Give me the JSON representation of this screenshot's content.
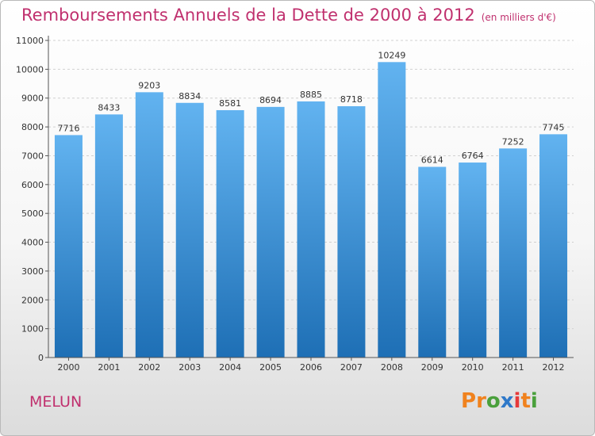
{
  "header": {
    "title": "Remboursements Annuels de la Dette de 2000 à 2012",
    "unit": "(en milliers d'€)"
  },
  "footer": {
    "city": "MELUN",
    "logo": [
      "P",
      "r",
      "o",
      "x",
      "i",
      "t",
      "i"
    ],
    "logo_colors": [
      "#f0821e",
      "#f0821e",
      "#4aa03c",
      "#2f79c9",
      "#e73a3a",
      "#f0821e",
      "#4aa03c"
    ]
  },
  "colors": {
    "bar_top": "#62b3f0",
    "bar_bottom": "#1e6fb5",
    "title": "#c0306e"
  },
  "chart_data": {
    "type": "bar",
    "title": "Remboursements Annuels de la Dette de 2000 à 2012",
    "categories": [
      "2000",
      "2001",
      "2002",
      "2003",
      "2004",
      "2005",
      "2006",
      "2007",
      "2008",
      "2009",
      "2010",
      "2011",
      "2012"
    ],
    "values": [
      7716,
      8433,
      9203,
      8834,
      8581,
      8694,
      8885,
      8718,
      10249,
      6614,
      6764,
      7252,
      7745
    ],
    "ylim": [
      0,
      11000
    ],
    "yticks": [
      0,
      1000,
      2000,
      3000,
      4000,
      5000,
      6000,
      7000,
      8000,
      9000,
      10000,
      11000
    ],
    "grid": true,
    "legend": "none"
  }
}
